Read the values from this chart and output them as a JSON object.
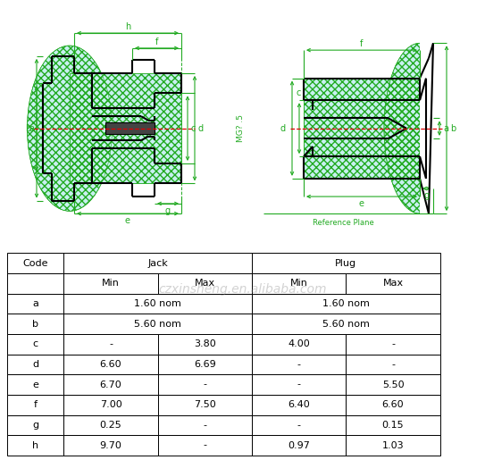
{
  "table_rows": [
    [
      "a",
      "1.60 nom",
      "",
      "1.60 nom",
      ""
    ],
    [
      "b",
      "5.60 nom",
      "",
      "5.60 nom",
      ""
    ],
    [
      "c",
      "-",
      "3.80",
      "4.00",
      "-"
    ],
    [
      "d",
      "6.60",
      "6.69",
      "-",
      "-"
    ],
    [
      "e",
      "6.70",
      "-",
      "-",
      "5.50"
    ],
    [
      "f",
      "7.00",
      "7.50",
      "6.40",
      "6.60"
    ],
    [
      "g",
      "0.25",
      "-",
      "-",
      "0.15"
    ],
    [
      "h",
      "9.70",
      "-",
      "0.97",
      "1.03"
    ]
  ],
  "watermark_text": "czxinsheng.en.alibaba.com",
  "cyan_fill": "#c8f0f0",
  "green_color": "#22aa22",
  "line_color": "#000000",
  "red_dash_color": "#dd0000",
  "hatch_lw": 0.4,
  "diag_lw": 1.5,
  "dim_lw": 0.8,
  "font_size_dim": 7,
  "font_size_table": 8
}
